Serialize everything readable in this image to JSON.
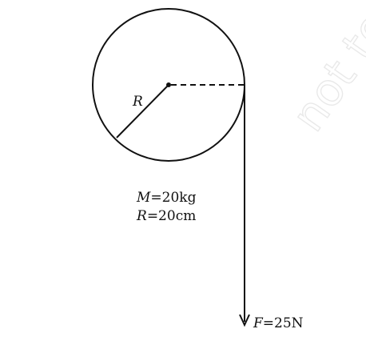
{
  "radius_label": "R",
  "mass": {
    "symbol": "M",
    "rest": "=20kg"
  },
  "radius": {
    "symbol": "R",
    "rest": "=20cm"
  },
  "force": {
    "symbol": "F",
    "rest": "=25N"
  },
  "watermark": "not to",
  "colors": {
    "ink": "#111111",
    "watermark": "#e9e9e9"
  }
}
